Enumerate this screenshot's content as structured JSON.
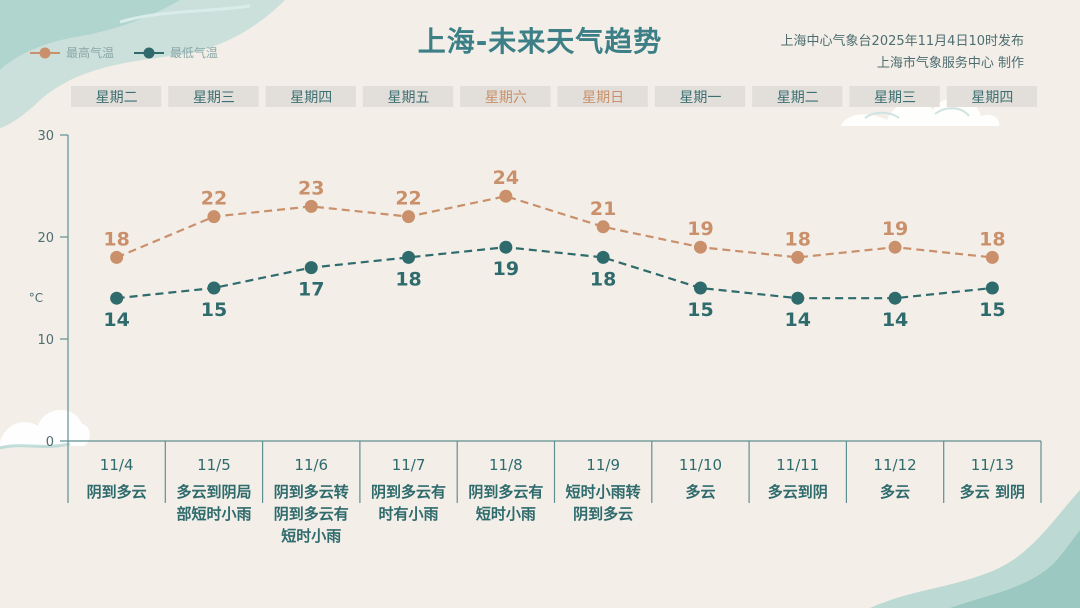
{
  "title": "上海-未来天气趋势",
  "publisher_line1": "上海中心气象台2025年11月4日10时发布",
  "publisher_line2": "上海市气象服务中心  制作",
  "legend": {
    "high": "最高气温",
    "low": "最低气温"
  },
  "unit": "°C",
  "colors": {
    "high": "#c9906b",
    "low": "#2f6a6c",
    "title": "#3d7f86",
    "weekday_normal": "#3c6f72",
    "weekday_weekend": "#c9906b",
    "weekday_box": "#dedbd6",
    "axis": "#5f8f92"
  },
  "days": [
    {
      "weekday": "星期二",
      "date": "11/4",
      "weather": [
        "阴到多云"
      ],
      "weekend": false
    },
    {
      "weekday": "星期三",
      "date": "11/5",
      "weather": [
        "多云到阴局",
        "部短时小雨"
      ],
      "weekend": false
    },
    {
      "weekday": "星期四",
      "date": "11/6",
      "weather": [
        "阴到多云转",
        "阴到多云有",
        "短时小雨"
      ],
      "weekend": false
    },
    {
      "weekday": "星期五",
      "date": "11/7",
      "weather": [
        "阴到多云有",
        "时有小雨"
      ],
      "weekend": false
    },
    {
      "weekday": "星期六",
      "date": "11/8",
      "weather": [
        "阴到多云有",
        "短时小雨"
      ],
      "weekend": true
    },
    {
      "weekday": "星期日",
      "date": "11/9",
      "weather": [
        "短时小雨转",
        "阴到多云"
      ],
      "weekend": true
    },
    {
      "weekday": "星期一",
      "date": "11/10",
      "weather": [
        "多云"
      ],
      "weekend": false
    },
    {
      "weekday": "星期二",
      "date": "11/11",
      "weather": [
        "多云到阴"
      ],
      "weekend": false
    },
    {
      "weekday": "星期三",
      "date": "11/12",
      "weather": [
        "多云"
      ],
      "weekend": false
    },
    {
      "weekday": "星期四",
      "date": "11/13",
      "weather": [
        "多云 到阴"
      ],
      "weekend": false
    }
  ],
  "chart_data": {
    "type": "line",
    "categories": [
      "11/4",
      "11/5",
      "11/6",
      "11/7",
      "11/8",
      "11/9",
      "11/10",
      "11/11",
      "11/12",
      "11/13"
    ],
    "series": [
      {
        "name": "最高气温",
        "values": [
          18,
          22,
          23,
          22,
          24,
          21,
          19,
          18,
          19,
          18
        ]
      },
      {
        "name": "最低气温",
        "values": [
          14,
          15,
          17,
          18,
          19,
          18,
          15,
          14,
          14,
          15
        ]
      }
    ],
    "title": "上海-未来天气趋势",
    "ylabel": "°C",
    "ylim": [
      0,
      30
    ],
    "yticks": [
      0,
      10,
      20,
      30
    ],
    "grid": false,
    "legend_position": "top-left"
  }
}
